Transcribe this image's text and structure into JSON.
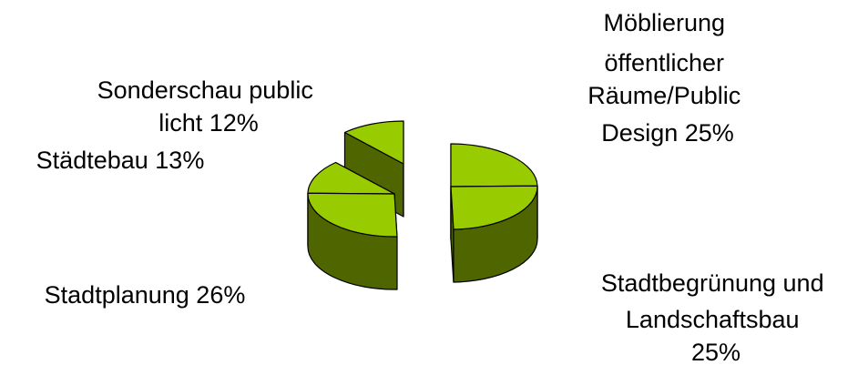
{
  "chart_data": {
    "type": "pie",
    "style": "3d-exploded",
    "title": "",
    "colors": {
      "top": "#99CC00",
      "side": "#4F6600",
      "outline": "#000000"
    },
    "slices": [
      {
        "label_lines": [
          "Möblierung",
          "öffentlicher",
          "Räume/Public",
          "Design 25%"
        ],
        "value": 25
      },
      {
        "label_lines": [
          "Stadtbegrünung und",
          "Landschaftsbau",
          "25%"
        ],
        "value": 25
      },
      {
        "label_lines": [
          "Stadtplanung 26%"
        ],
        "value": 26
      },
      {
        "label_lines": [
          "Städtebau 13%"
        ],
        "value": 13
      },
      {
        "label_lines": [
          "Sonderschau public",
          "licht 12%"
        ],
        "value": 12
      }
    ]
  }
}
